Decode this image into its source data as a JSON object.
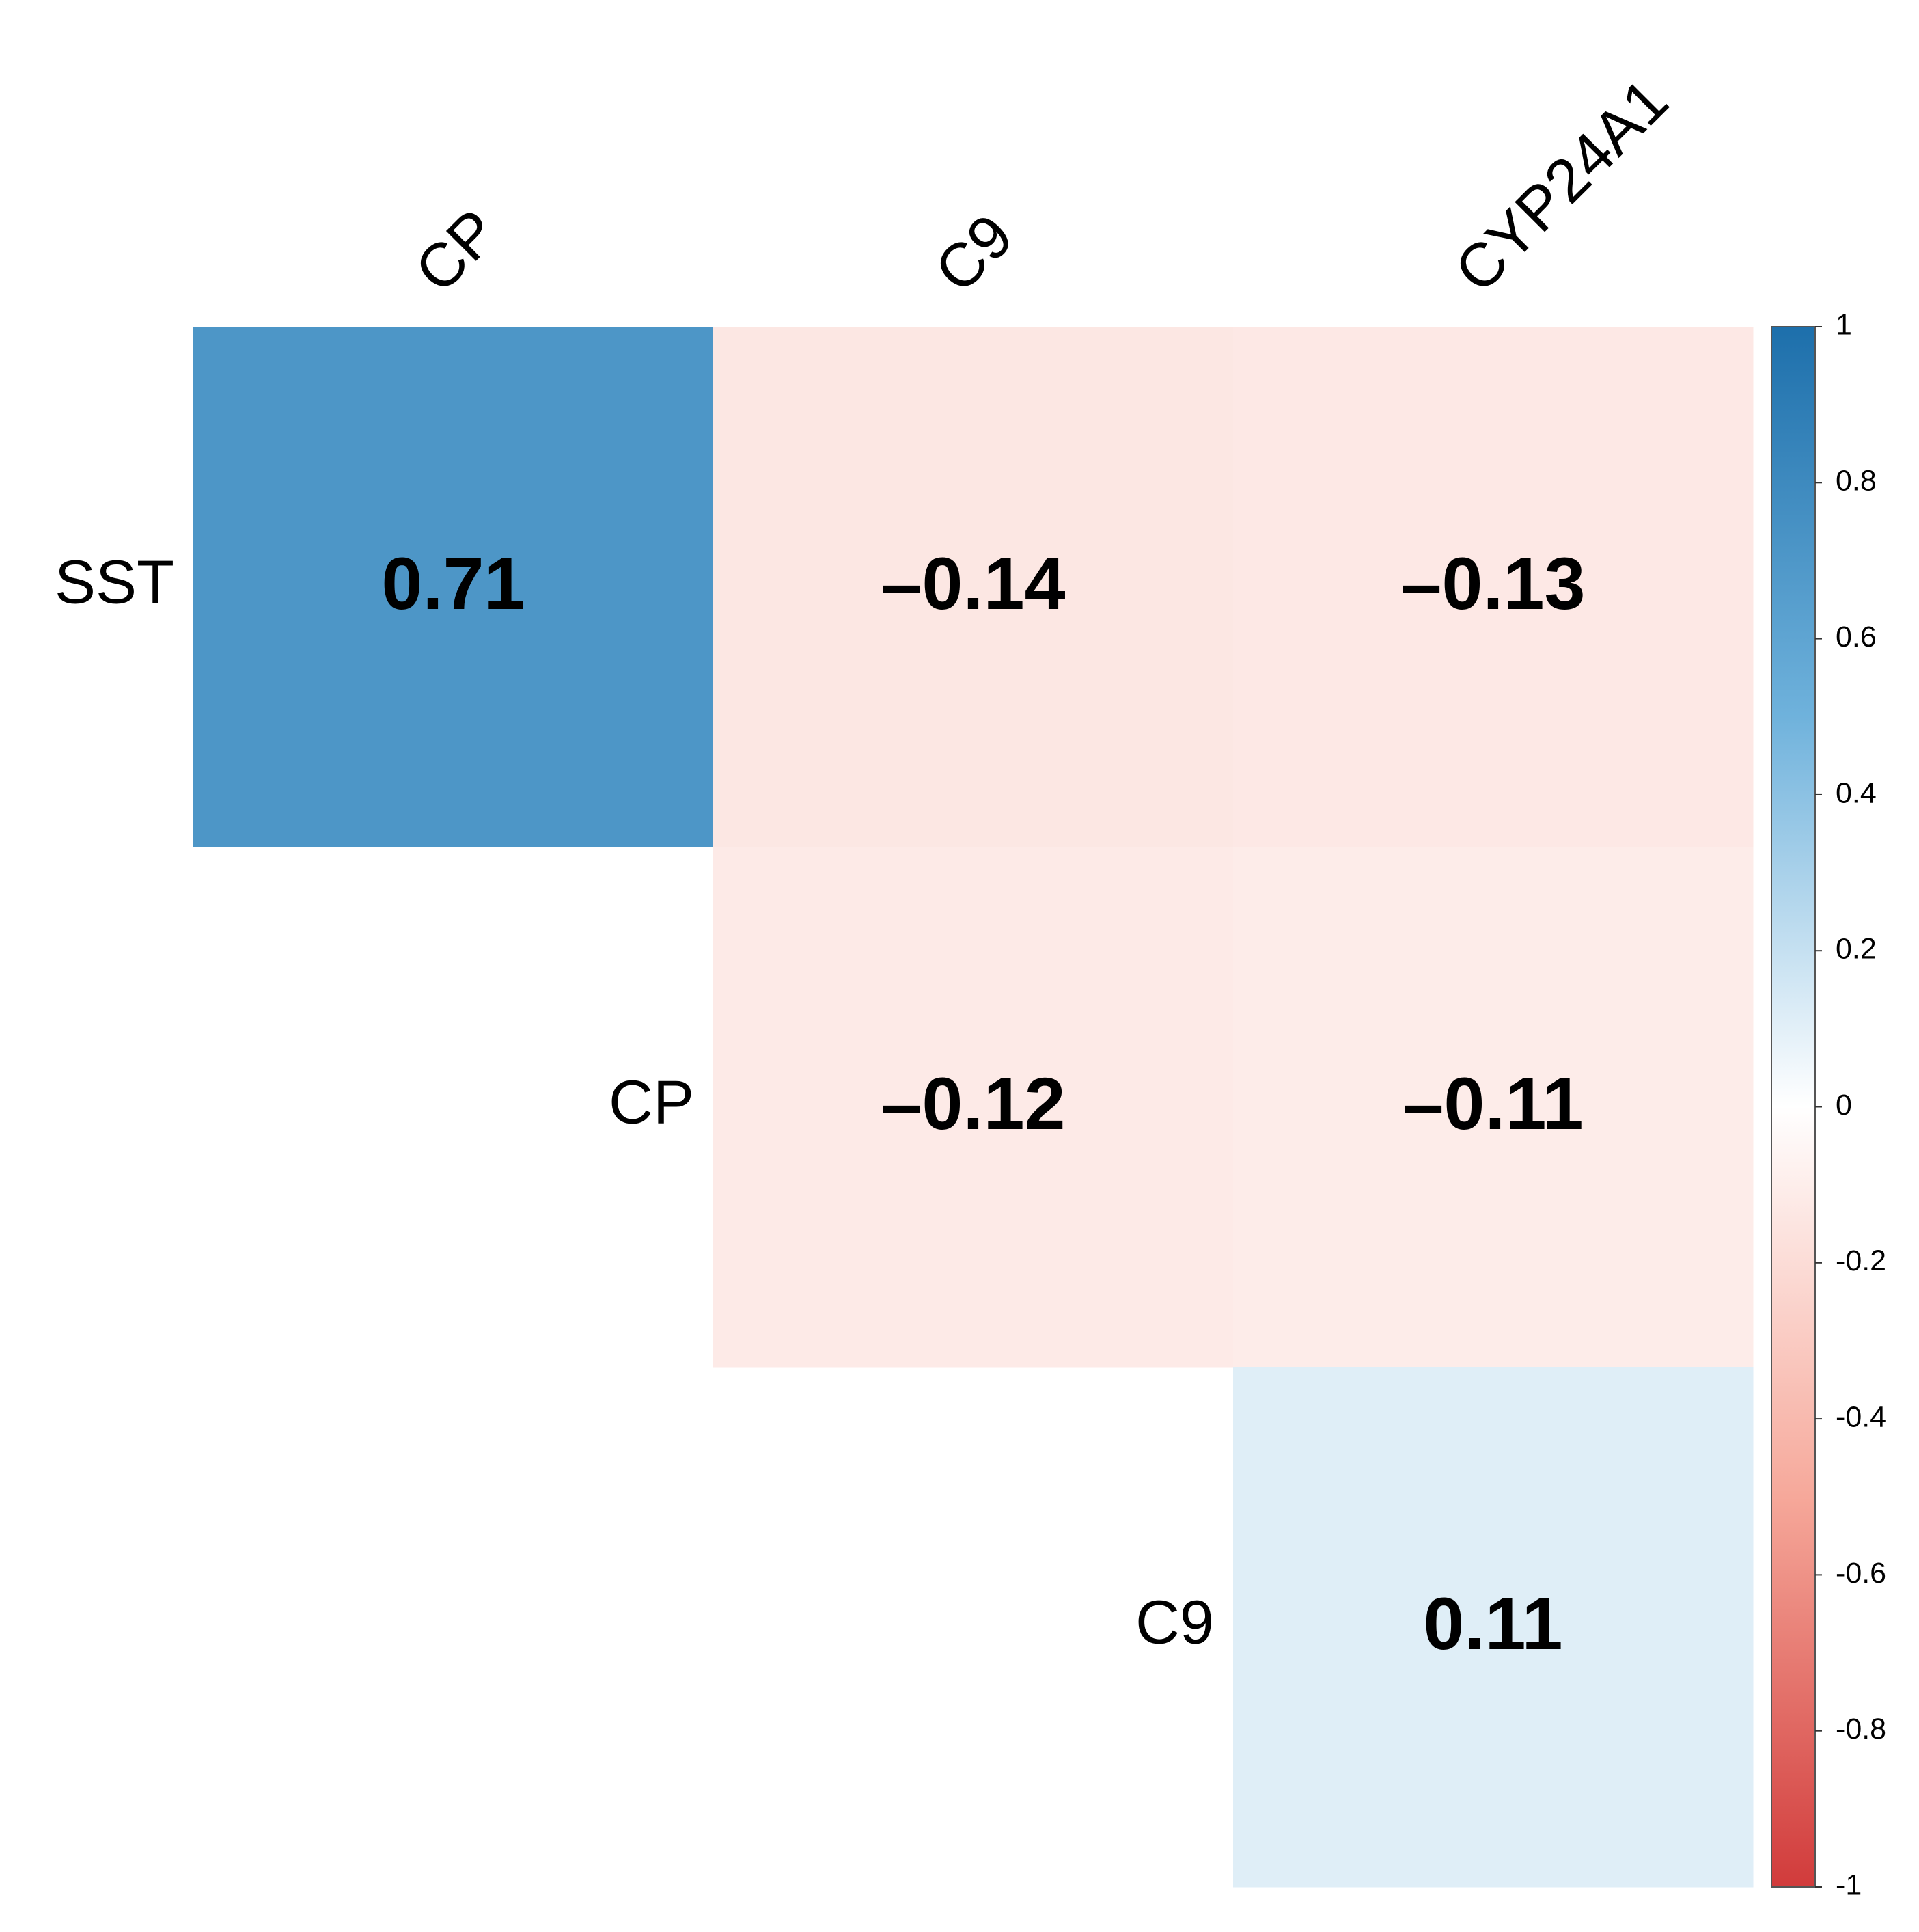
{
  "chart_data": {
    "type": "heatmap",
    "rows": [
      "SST",
      "CP",
      "C9"
    ],
    "columns": [
      "CP",
      "C9",
      "CYP24A1"
    ],
    "values": [
      [
        0.71,
        -0.14,
        -0.13
      ],
      [
        null,
        -0.12,
        -0.11
      ],
      [
        null,
        null,
        0.11
      ]
    ],
    "value_labels": [
      [
        "0.71",
        "–0.14",
        "–0.13"
      ],
      [
        null,
        "–0.12",
        "–0.11"
      ],
      [
        null,
        null,
        "0.11"
      ]
    ],
    "zlim": [
      -1,
      1
    ],
    "zticks": [
      -1,
      -0.8,
      -0.6,
      -0.4,
      -0.2,
      0,
      0.2,
      0.4,
      0.6,
      0.8,
      1
    ],
    "colors": [
      "#d13b3b",
      "#f6a89a",
      "#ffffff",
      "#6fb2dc",
      "#1d6fab"
    ]
  }
}
